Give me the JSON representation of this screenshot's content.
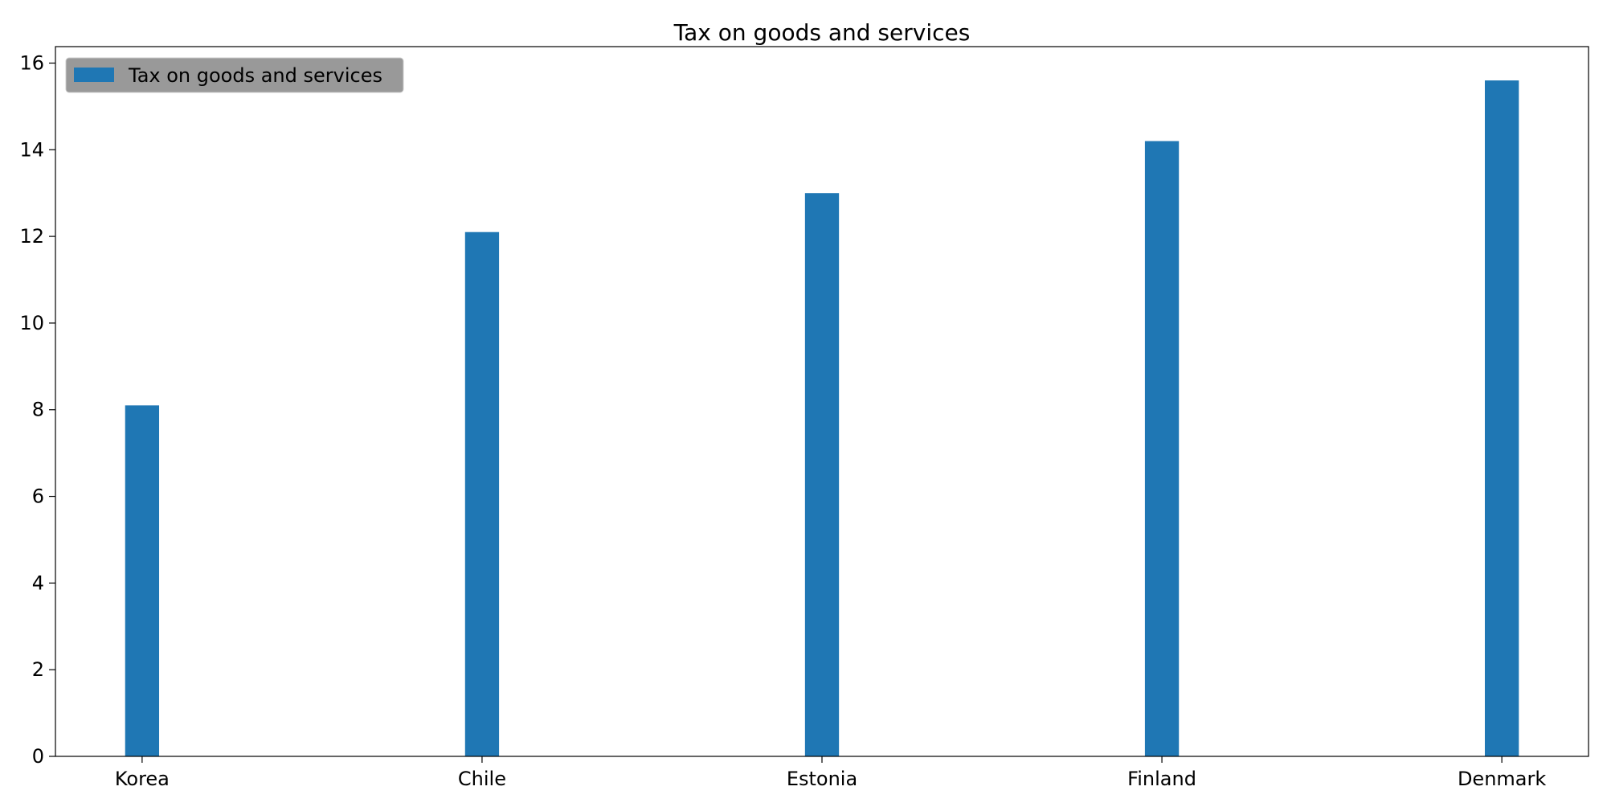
{
  "chart_data": {
    "type": "bar",
    "title": "Tax on goods and services",
    "xlabel": "",
    "ylabel": "",
    "categories": [
      "Korea",
      "Chile",
      "Estonia",
      "Finland",
      "Denmark"
    ],
    "series": [
      {
        "name": "Tax on goods and services",
        "values": [
          8.1,
          12.1,
          13.0,
          14.2,
          15.6
        ],
        "color": "#1f77b4"
      }
    ],
    "ylim": [
      0,
      16.38
    ],
    "yticks": [
      0,
      2,
      4,
      6,
      8,
      10,
      12,
      14,
      16
    ],
    "grid": false,
    "legend": {
      "position": "top-left",
      "facecolor": "#999999"
    }
  }
}
